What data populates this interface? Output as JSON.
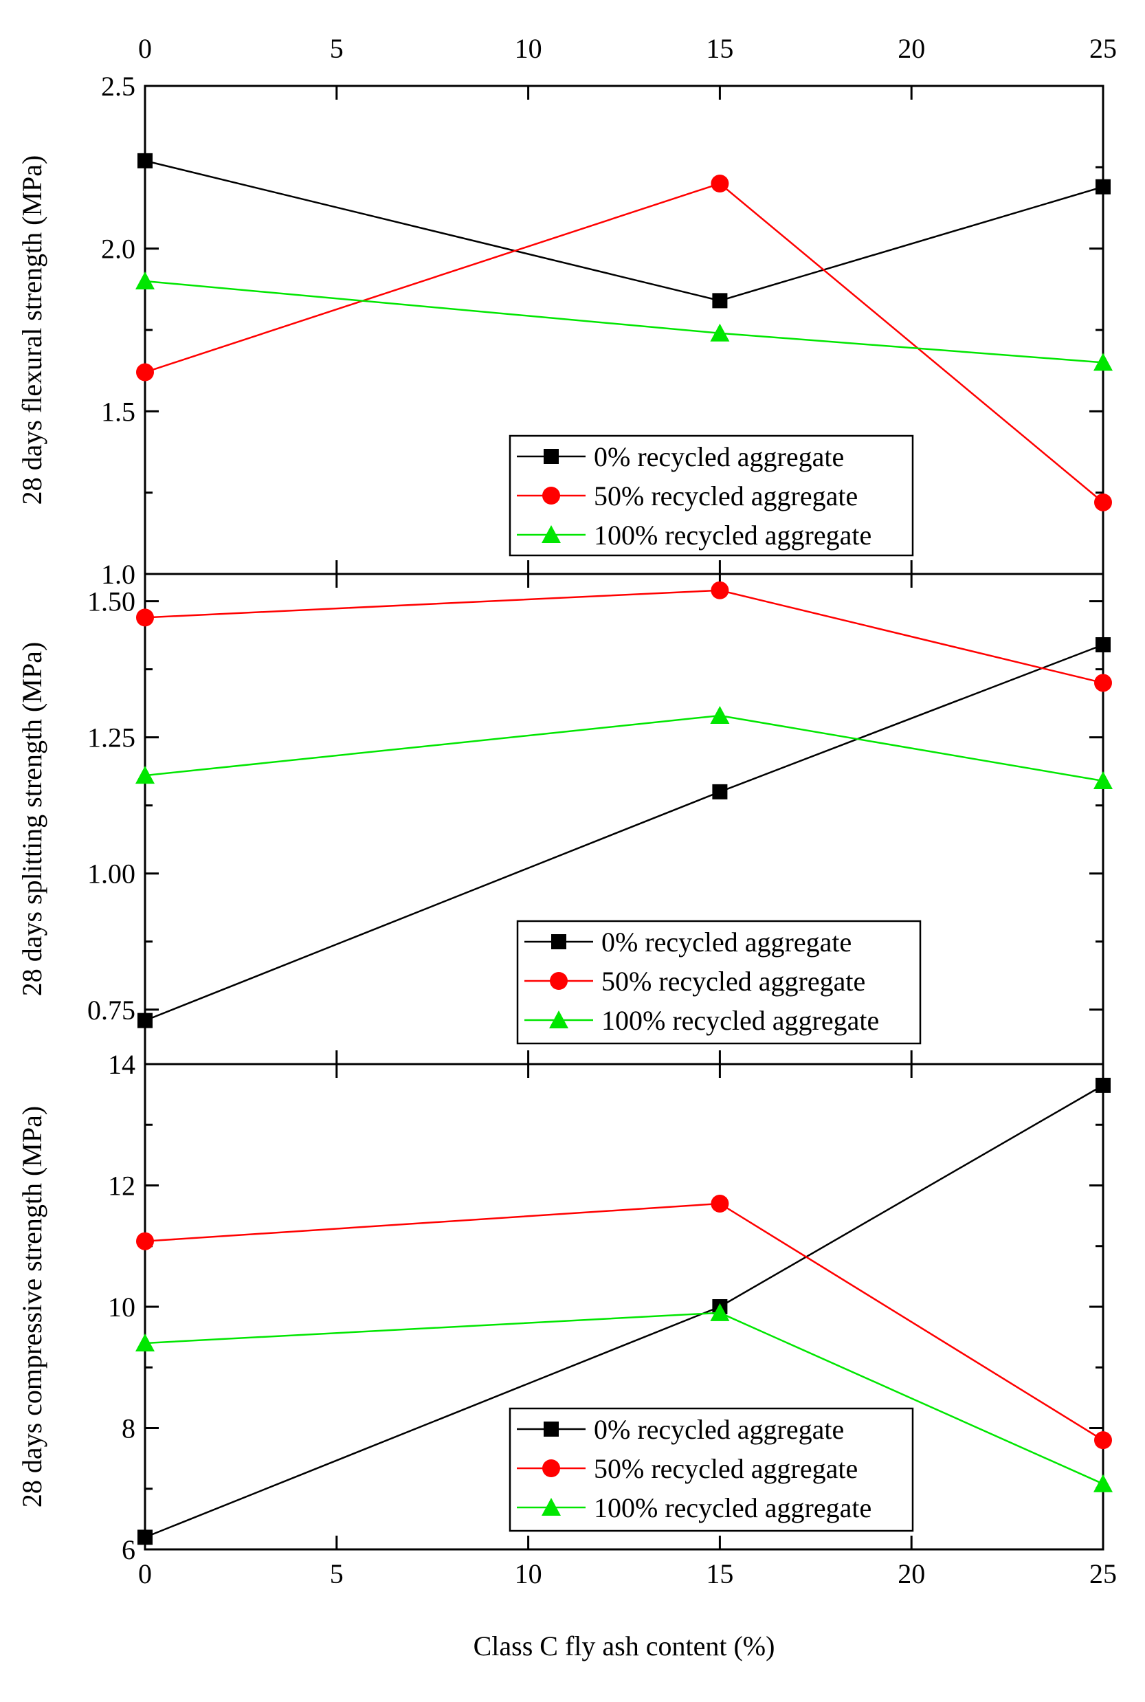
{
  "chart_data": {
    "type": "line",
    "shared_x": {
      "label": "Class C fly ash content (%)",
      "xlim": [
        0,
        25
      ],
      "ticks": [
        0,
        5,
        10,
        15,
        20,
        25
      ],
      "tick_labels": [
        "0",
        "5",
        "10",
        "15",
        "20",
        "25"
      ]
    },
    "panels": [
      {
        "ylabel": "28 days flexural strength (MPa)",
        "ylim": [
          1.0,
          2.5
        ],
        "ticks": [
          1.0,
          1.5,
          2.0,
          2.5
        ],
        "tick_labels": [
          "1.0",
          "1.5",
          "2.0",
          "2.5"
        ],
        "legend": "bottom-right",
        "series": [
          {
            "name": "0% recycled aggregate",
            "color": "#000000",
            "marker": "square",
            "x": [
              0,
              15,
              25
            ],
            "values": [
              2.27,
              1.84,
              2.19
            ]
          },
          {
            "name": "50% recycled aggregate",
            "color": "#ff0000",
            "marker": "circle",
            "x": [
              0,
              15,
              25
            ],
            "values": [
              1.62,
              2.2,
              1.22
            ]
          },
          {
            "name": "100% recycled aggregate",
            "color": "#00e600",
            "marker": "triangle",
            "x": [
              0,
              15,
              25
            ],
            "values": [
              1.9,
              1.74,
              1.65
            ]
          }
        ]
      },
      {
        "ylabel": "28 days splitting strength (MPa)",
        "ylim": [
          0.65,
          1.55
        ],
        "ticks": [
          0.75,
          1.0,
          1.25,
          1.5
        ],
        "tick_labels": [
          "0.75",
          "1.00",
          "1.25",
          "1.50"
        ],
        "legend": "bottom-right",
        "series": [
          {
            "name": "0% recycled aggregate",
            "color": "#000000",
            "marker": "square",
            "x": [
              0,
              15,
              25
            ],
            "values": [
              0.73,
              1.15,
              1.42
            ]
          },
          {
            "name": "50% recycled aggregate",
            "color": "#ff0000",
            "marker": "circle",
            "x": [
              0,
              15,
              25
            ],
            "values": [
              1.47,
              1.52,
              1.35
            ]
          },
          {
            "name": "100% recycled aggregate",
            "color": "#00e600",
            "marker": "triangle",
            "x": [
              0,
              15,
              25
            ],
            "values": [
              1.18,
              1.29,
              1.17
            ]
          }
        ]
      },
      {
        "ylabel": "28 days compressive strength (MPa)",
        "ylim": [
          6,
          14
        ],
        "ticks": [
          6,
          8,
          10,
          12,
          14
        ],
        "tick_labels": [
          "6",
          "8",
          "10",
          "12",
          "14"
        ],
        "legend": "bottom-right",
        "series": [
          {
            "name": "0% recycled aggregate",
            "color": "#000000",
            "marker": "square",
            "x": [
              0,
              15,
              25
            ],
            "values": [
              6.2,
              10.0,
              13.65
            ]
          },
          {
            "name": "50% recycled aggregate",
            "color": "#ff0000",
            "marker": "circle",
            "x": [
              0,
              15,
              25
            ],
            "values": [
              11.08,
              11.7,
              7.8
            ]
          },
          {
            "name": "100% recycled aggregate",
            "color": "#00e600",
            "marker": "triangle",
            "x": [
              0,
              15,
              25
            ],
            "values": [
              9.4,
              9.9,
              7.08
            ]
          }
        ]
      }
    ]
  }
}
